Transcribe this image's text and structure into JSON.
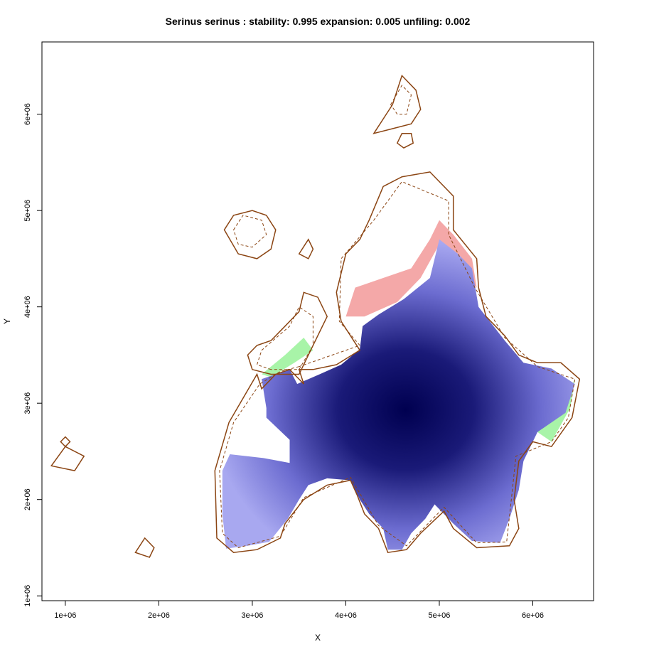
{
  "chart_data": {
    "type": "heatmap",
    "title": "Serinus serinus : stability: 0.995 expansion: 0.005 unfiling: 0.002",
    "xlabel": "X",
    "ylabel": "Y",
    "xlim": [
      750000,
      6650000
    ],
    "ylim": [
      950000,
      6750000
    ],
    "xticks": [
      {
        "value": 1000000,
        "label": "1e+06"
      },
      {
        "value": 2000000,
        "label": "2e+06"
      },
      {
        "value": 3000000,
        "label": "3e+06"
      },
      {
        "value": 4000000,
        "label": "4e+06"
      },
      {
        "value": 5000000,
        "label": "5e+06"
      },
      {
        "value": 6000000,
        "label": "6e+06"
      }
    ],
    "yticks": [
      {
        "value": 1000000,
        "label": "1e+06"
      },
      {
        "value": 2000000,
        "label": "2e+06"
      },
      {
        "value": 3000000,
        "label": "3e+06"
      },
      {
        "value": 4000000,
        "label": "4e+06"
      },
      {
        "value": 5000000,
        "label": "5e+06"
      },
      {
        "value": 6000000,
        "label": "6e+06"
      }
    ],
    "stability": 0.995,
    "expansion": 0.005,
    "unfiling": 0.002,
    "colors": {
      "stability_high": "#000050",
      "stability_low": "#a8a8f0",
      "expansion": "#f4a8a8",
      "unfilling": "#a8f4a8",
      "outline": "#8b4513"
    },
    "regions": {
      "stability": [
        [
          2720000,
          1490000
        ],
        [
          2680000,
          1850000
        ],
        [
          2680000,
          2300000
        ],
        [
          2760000,
          2470000
        ],
        [
          3120000,
          2430000
        ],
        [
          3400000,
          2380000
        ],
        [
          3400000,
          2620000
        ],
        [
          3150000,
          2850000
        ],
        [
          3150000,
          2950000
        ],
        [
          3100000,
          3250000
        ],
        [
          3400000,
          3350000
        ],
        [
          3480000,
          3200000
        ],
        [
          3720000,
          3300000
        ],
        [
          3950000,
          3400000
        ],
        [
          4150000,
          3560000
        ],
        [
          4180000,
          3800000
        ],
        [
          4350000,
          3920000
        ],
        [
          4620000,
          4080000
        ],
        [
          4900000,
          4300000
        ],
        [
          5000000,
          4700000
        ],
        [
          5200000,
          4550000
        ],
        [
          5350000,
          4400000
        ],
        [
          5420000,
          4000000
        ],
        [
          5700000,
          3650000
        ],
        [
          5900000,
          3420000
        ],
        [
          6200000,
          3360000
        ],
        [
          6450000,
          3200000
        ],
        [
          6350000,
          2900000
        ],
        [
          6050000,
          2700000
        ],
        [
          5900000,
          2400000
        ],
        [
          5850000,
          2100000
        ],
        [
          5750000,
          1800000
        ],
        [
          5650000,
          1550000
        ],
        [
          5350000,
          1570000
        ],
        [
          5150000,
          1750000
        ],
        [
          4950000,
          1950000
        ],
        [
          4850000,
          1800000
        ],
        [
          4700000,
          1650000
        ],
        [
          4600000,
          1480000
        ],
        [
          4450000,
          1480000
        ],
        [
          4400000,
          1700000
        ],
        [
          4250000,
          1850000
        ],
        [
          4150000,
          2000000
        ],
        [
          4050000,
          2200000
        ],
        [
          3800000,
          2220000
        ],
        [
          3600000,
          2150000
        ],
        [
          3500000,
          2000000
        ],
        [
          3380000,
          1800000
        ],
        [
          3180000,
          1560000
        ],
        [
          2950000,
          1520000
        ]
      ],
      "expansion": [
        [
          4000000,
          3900000
        ],
        [
          4100000,
          4200000
        ],
        [
          4400000,
          4300000
        ],
        [
          4700000,
          4400000
        ],
        [
          4900000,
          4700000
        ],
        [
          5000000,
          4900000
        ],
        [
          5150000,
          4750000
        ],
        [
          5350000,
          4500000
        ],
        [
          5400000,
          4200000
        ],
        [
          5250000,
          4350000
        ],
        [
          5000000,
          4650000
        ],
        [
          4800000,
          4300000
        ],
        [
          4550000,
          4050000
        ],
        [
          4200000,
          3900000
        ]
      ],
      "unfilling": [
        [
          [
            3100000,
            3300000
          ],
          [
            3350000,
            3500000
          ],
          [
            3550000,
            3680000
          ],
          [
            3650000,
            3550000
          ],
          [
            3450000,
            3420000
          ],
          [
            3200000,
            3270000
          ]
        ],
        [
          [
            6050000,
            2700000
          ],
          [
            6200000,
            2600000
          ],
          [
            6400000,
            2950000
          ],
          [
            6450000,
            3250000
          ],
          [
            6350000,
            3050000
          ],
          [
            6150000,
            2850000
          ]
        ]
      ]
    },
    "outlines": {
      "solid": [
        [
          [
            3500000,
            3350000
          ],
          [
            3550000,
            3200000
          ],
          [
            3400000,
            3350000
          ],
          [
            3250000,
            3300000
          ],
          [
            3100000,
            3150000
          ],
          [
            3050000,
            3300000
          ],
          [
            2750000,
            2800000
          ],
          [
            2600000,
            2300000
          ],
          [
            2620000,
            1600000
          ],
          [
            2800000,
            1450000
          ],
          [
            3050000,
            1480000
          ],
          [
            3300000,
            1600000
          ],
          [
            3350000,
            1750000
          ],
          [
            3550000,
            2000000
          ],
          [
            3800000,
            2150000
          ],
          [
            4050000,
            2200000
          ],
          [
            4120000,
            2050000
          ],
          [
            4200000,
            1850000
          ],
          [
            4350000,
            1700000
          ],
          [
            4450000,
            1450000
          ],
          [
            4650000,
            1480000
          ],
          [
            4800000,
            1650000
          ],
          [
            5050000,
            1880000
          ],
          [
            5150000,
            1700000
          ],
          [
            5400000,
            1500000
          ],
          [
            5750000,
            1520000
          ],
          [
            5850000,
            1700000
          ],
          [
            5800000,
            2000000
          ],
          [
            5850000,
            2400000
          ],
          [
            6000000,
            2600000
          ],
          [
            6200000,
            2550000
          ],
          [
            6420000,
            2850000
          ],
          [
            6500000,
            3250000
          ],
          [
            6300000,
            3420000
          ],
          [
            6050000,
            3420000
          ],
          [
            5850000,
            3500000
          ],
          [
            5700000,
            3700000
          ],
          [
            5500000,
            3900000
          ],
          [
            5420000,
            4200000
          ],
          [
            5400000,
            4500000
          ],
          [
            5150000,
            4800000
          ],
          [
            5150000,
            5150000
          ],
          [
            4900000,
            5400000
          ],
          [
            4600000,
            5350000
          ],
          [
            4400000,
            5250000
          ],
          [
            4250000,
            4900000
          ],
          [
            4150000,
            4700000
          ],
          [
            4000000,
            4550000
          ],
          [
            3900000,
            4150000
          ],
          [
            3950000,
            3850000
          ],
          [
            4150000,
            3550000
          ],
          [
            3900000,
            3400000
          ],
          [
            3650000,
            3350000
          ]
        ],
        [
          [
            3200000,
            3300000
          ],
          [
            3000000,
            3350000
          ],
          [
            2950000,
            3500000
          ],
          [
            3050000,
            3600000
          ],
          [
            3200000,
            3650000
          ],
          [
            3350000,
            3800000
          ],
          [
            3500000,
            3950000
          ],
          [
            3550000,
            4150000
          ],
          [
            3700000,
            4100000
          ],
          [
            3800000,
            3900000
          ],
          [
            3700000,
            3700000
          ],
          [
            3600000,
            3500000
          ],
          [
            3500000,
            3300000
          ]
        ],
        [
          [
            4300000,
            5800000
          ],
          [
            4500000,
            6100000
          ],
          [
            4600000,
            6400000
          ],
          [
            4750000,
            6250000
          ],
          [
            4800000,
            6050000
          ],
          [
            4700000,
            5900000
          ],
          [
            4500000,
            5850000
          ]
        ],
        [
          [
            4550000,
            5700000
          ],
          [
            4600000,
            5800000
          ],
          [
            4700000,
            5800000
          ],
          [
            4720000,
            5700000
          ],
          [
            4620000,
            5650000
          ]
        ],
        [
          [
            2700000,
            4800000
          ],
          [
            2800000,
            4950000
          ],
          [
            3000000,
            5000000
          ],
          [
            3150000,
            4950000
          ],
          [
            3250000,
            4800000
          ],
          [
            3200000,
            4600000
          ],
          [
            3050000,
            4500000
          ],
          [
            2850000,
            4550000
          ]
        ],
        [
          [
            3500000,
            4550000
          ],
          [
            3600000,
            4700000
          ],
          [
            3650000,
            4600000
          ],
          [
            3600000,
            4500000
          ]
        ],
        [
          [
            850000,
            2350000
          ],
          [
            1000000,
            2550000
          ],
          [
            1200000,
            2450000
          ],
          [
            1100000,
            2300000
          ]
        ],
        [
          [
            1750000,
            1450000
          ],
          [
            1850000,
            1600000
          ],
          [
            1950000,
            1500000
          ],
          [
            1900000,
            1400000
          ]
        ],
        [
          [
            950000,
            2600000
          ],
          [
            1000000,
            2650000
          ],
          [
            1050000,
            2600000
          ],
          [
            1000000,
            2550000
          ]
        ]
      ],
      "dashed": [
        [
          [
            3500000,
            3380000
          ],
          [
            3300000,
            3330000
          ],
          [
            3080000,
            3200000
          ],
          [
            2800000,
            2800000
          ],
          [
            2650000,
            2300000
          ],
          [
            2680000,
            1650000
          ],
          [
            2850000,
            1500000
          ],
          [
            3300000,
            1620000
          ],
          [
            3550000,
            2020000
          ],
          [
            4050000,
            2230000
          ],
          [
            4350000,
            1730000
          ],
          [
            4650000,
            1520000
          ],
          [
            5050000,
            1920000
          ],
          [
            5400000,
            1550000
          ],
          [
            5720000,
            1560000
          ],
          [
            5770000,
            2000000
          ],
          [
            5820000,
            2450000
          ],
          [
            6200000,
            2600000
          ],
          [
            6380000,
            2850000
          ],
          [
            6450000,
            3250000
          ],
          [
            6050000,
            3380000
          ],
          [
            5700000,
            3680000
          ],
          [
            5380000,
            4200000
          ],
          [
            5100000,
            4750000
          ],
          [
            5100000,
            5100000
          ],
          [
            4600000,
            5300000
          ],
          [
            4300000,
            4900000
          ],
          [
            3950000,
            4500000
          ],
          [
            3930000,
            3850000
          ],
          [
            4150000,
            3600000
          ]
        ],
        [
          [
            4480000,
            6100000
          ],
          [
            4600000,
            6300000
          ],
          [
            4700000,
            6200000
          ],
          [
            4650000,
            6000000
          ],
          [
            4550000,
            6000000
          ]
        ],
        [
          [
            2800000,
            4800000
          ],
          [
            2900000,
            4950000
          ],
          [
            3100000,
            4900000
          ],
          [
            3150000,
            4750000
          ],
          [
            3000000,
            4620000
          ],
          [
            2850000,
            4650000
          ]
        ],
        [
          [
            3200000,
            3350000
          ],
          [
            3050000,
            3400000
          ],
          [
            3100000,
            3550000
          ],
          [
            3400000,
            3800000
          ],
          [
            3500000,
            4000000
          ],
          [
            3650000,
            3900000
          ],
          [
            3650000,
            3600000
          ],
          [
            3500000,
            3350000
          ]
        ]
      ]
    }
  }
}
